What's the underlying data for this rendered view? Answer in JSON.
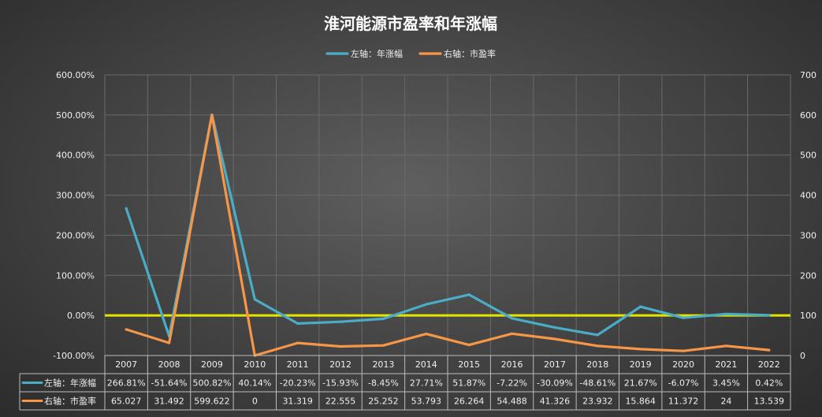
{
  "chart_data": {
    "type": "line",
    "title": "淮河能源市盈率和年涨幅",
    "categories": [
      "2007",
      "2008",
      "2009",
      "2010",
      "2011",
      "2012",
      "2013",
      "2014",
      "2015",
      "2016",
      "2017",
      "2018",
      "2019",
      "2020",
      "2021",
      "2022"
    ],
    "series": [
      {
        "name": "左轴：年涨幅",
        "axis": "left",
        "color": "#4bacc6",
        "values": [
          266.81,
          -51.64,
          500.82,
          40.14,
          -20.23,
          -15.93,
          -8.45,
          27.71,
          51.87,
          -7.22,
          -30.09,
          -48.61,
          21.67,
          -6.07,
          3.45,
          0.42
        ],
        "labels": [
          "266.81%",
          "-51.64%",
          "500.82%",
          "40.14%",
          "-20.23%",
          "-15.93%",
          "-8.45%",
          "27.71%",
          "51.87%",
          "-7.22%",
          "-30.09%",
          "-48.61%",
          "21.67%",
          "-6.07%",
          "3.45%",
          "0.42%"
        ]
      },
      {
        "name": "右轴：市盈率",
        "axis": "right",
        "color": "#f79646",
        "values": [
          65.027,
          31.492,
          599.622,
          0,
          31.319,
          22.555,
          25.252,
          53.793,
          26.264,
          54.488,
          41.326,
          23.932,
          15.864,
          11.372,
          24,
          13.539
        ],
        "labels": [
          "65.027",
          "31.492",
          "599.622",
          "0",
          "31.319",
          "22.555",
          "25.252",
          "53.793",
          "26.264",
          "54.488",
          "41.326",
          "23.932",
          "15.864",
          "11.372",
          "24",
          "13.539"
        ]
      }
    ],
    "y_left": {
      "min": -100,
      "max": 600,
      "ticks": [
        "600.00%",
        "500.00%",
        "400.00%",
        "300.00%",
        "200.00%",
        "100.00%",
        "0.00%",
        "-100.00%"
      ]
    },
    "y_right": {
      "min": 0,
      "max": 700,
      "ticks": [
        "700",
        "600",
        "500",
        "400",
        "300",
        "200",
        "100",
        "0"
      ]
    },
    "zero_line_color": "#e5e600",
    "grid": true,
    "legend_position": "top-center",
    "has_data_table": true
  }
}
